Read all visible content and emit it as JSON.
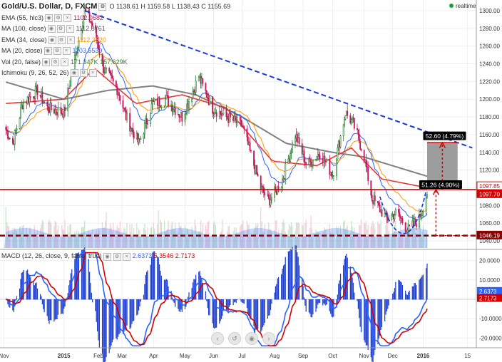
{
  "header": {
    "symbol": "Gold/U.S. Dollar, D, FXCM",
    "ohlc": "O 1138.61  H 1159.58  L 1138.43  C 1155.69",
    "realtime": "realtime"
  },
  "legend": [
    {
      "label": "EMA (55, hlc3)",
      "value": "1102.0682",
      "color": "#c2185b"
    },
    {
      "label": "MA (100, close)",
      "value": "1112.8761",
      "color": "#555555"
    },
    {
      "label": "EMA (34, close)",
      "value": "1112.3620",
      "color": "#ff9800"
    },
    {
      "label": "MA (20, close)",
      "value": "1103.5530",
      "color": "#2962ff"
    },
    {
      "label": "Vol (20, false)",
      "value": "171.347K  157.629K",
      "color": "#2e7d32"
    },
    {
      "label": "Ichimoku (9, 26, 52, 26)",
      "value": "",
      "color": "#888888"
    }
  ],
  "macd_legend": {
    "label": "MACD (12, 26, close, 9, false, true)",
    "v1": "2.6373",
    "v2": "5.3546",
    "v3": "2.7173",
    "c1": "#2962ff",
    "c2": "#d50000",
    "c3": "#d50000"
  },
  "price_badges": [
    {
      "text": "1097.85",
      "price": 1097.85,
      "bg": "#ffffff",
      "fg": "#d50000",
      "border": "#d50000"
    },
    {
      "text": "1097.70",
      "price": 1097.7,
      "bg": "#d50000",
      "fg": "#ffffff",
      "border": "#d50000"
    },
    {
      "text": "1046.19",
      "price": 1046.19,
      "bg": "#8b0000",
      "fg": "#ffffff",
      "border": "#8b0000"
    }
  ],
  "annotations": [
    {
      "text": "51.26 (4.90%)",
      "price": 1102
    },
    {
      "text": "52.60 (4.79%)",
      "price": 1157
    }
  ],
  "nav_buttons": [
    "‹",
    "↺",
    "◉",
    "›"
  ],
  "colors": {
    "up": "#1e7d2a",
    "down": "#c2185b",
    "accent_red": "#d50000",
    "trend_blue": "#1a3ad8",
    "gray_ma": "#808080"
  },
  "chart_data": {
    "type": "line",
    "title": "Gold/U.S. Dollar, D, FXCM",
    "price_axis": {
      "range": [
        1032,
        1312
      ],
      "ticks": [
        "1300.00",
        "1280.00",
        "1260.00",
        "1240.00",
        "1220.00",
        "1200.00",
        "1180.00",
        "1160.00",
        "1140.00",
        "1120.00",
        "1100.00",
        "1080.00",
        "1060.00",
        "1040.00"
      ]
    },
    "time_axis": {
      "labels": [
        "Nov",
        "2015",
        "Feb",
        "Mar",
        "Apr",
        "May",
        "Jun",
        "Jul",
        "Aug",
        "Sep",
        "Oct",
        "Nov",
        "Dec",
        "2016",
        "15"
      ]
    },
    "macd_axis": {
      "range": [
        -25,
        25
      ],
      "ticks": [
        "20.0000",
        "10.0000",
        "0.0000",
        "-10.0000",
        "-20.0000"
      ]
    },
    "series": [
      {
        "name": "Close",
        "values_anchor": [
          [
            "2014-11-01",
            1170
          ],
          [
            "2014-11-10",
            1150
          ],
          [
            "2014-11-20",
            1195
          ],
          [
            "2014-12-05",
            1210
          ],
          [
            "2014-12-15",
            1190
          ],
          [
            "2015-01-01",
            1185
          ],
          [
            "2015-01-10",
            1235
          ],
          [
            "2015-01-22",
            1300
          ],
          [
            "2015-02-01",
            1280
          ],
          [
            "2015-02-10",
            1235
          ],
          [
            "2015-02-25",
            1210
          ],
          [
            "2015-03-05",
            1180
          ],
          [
            "2015-03-18",
            1150
          ],
          [
            "2015-04-01",
            1195
          ],
          [
            "2015-04-15",
            1200
          ],
          [
            "2015-05-01",
            1180
          ],
          [
            "2015-05-18",
            1225
          ],
          [
            "2015-06-01",
            1190
          ],
          [
            "2015-06-15",
            1180
          ],
          [
            "2015-07-01",
            1170
          ],
          [
            "2015-07-20",
            1100
          ],
          [
            "2015-07-28",
            1085
          ],
          [
            "2015-08-10",
            1105
          ],
          [
            "2015-08-24",
            1160
          ],
          [
            "2015-09-05",
            1125
          ],
          [
            "2015-09-18",
            1140
          ],
          [
            "2015-10-01",
            1115
          ],
          [
            "2015-10-14",
            1185
          ],
          [
            "2015-10-22",
            1172
          ],
          [
            "2015-11-01",
            1140
          ],
          [
            "2015-11-10",
            1088
          ],
          [
            "2015-11-25",
            1065
          ],
          [
            "2015-12-05",
            1072
          ],
          [
            "2015-12-17",
            1052
          ],
          [
            "2015-12-28",
            1065
          ],
          [
            "2016-01-05",
            1095
          ]
        ]
      },
      {
        "name": "MA (100, close)",
        "values_anchor": [
          [
            "2014-11-01",
            1220
          ],
          [
            "2015-01-01",
            1200
          ],
          [
            "2015-02-15",
            1210
          ],
          [
            "2015-04-01",
            1215
          ],
          [
            "2015-05-15",
            1205
          ],
          [
            "2015-07-01",
            1180
          ],
          [
            "2015-08-15",
            1150
          ],
          [
            "2015-10-01",
            1140
          ],
          [
            "2015-11-01",
            1135
          ],
          [
            "2016-01-05",
            1113
          ]
        ]
      },
      {
        "name": "EMA (55, hlc3)",
        "values_anchor": [
          [
            "2014-11-01",
            1195
          ],
          [
            "2015-01-01",
            1200
          ],
          [
            "2015-02-01",
            1235
          ],
          [
            "2015-03-15",
            1195
          ],
          [
            "2015-05-01",
            1205
          ],
          [
            "2015-06-15",
            1190
          ],
          [
            "2015-08-01",
            1130
          ],
          [
            "2015-09-15",
            1125
          ],
          [
            "2015-10-20",
            1145
          ],
          [
            "2015-11-20",
            1110
          ],
          [
            "2016-01-05",
            1100
          ]
        ]
      }
    ],
    "trendlines": [
      {
        "name": "downtrend",
        "from": [
          "2015-01-22",
          1300
        ],
        "to": [
          "2016-02-20",
          1145
        ]
      },
      {
        "name": "resistance",
        "price": 1098
      },
      {
        "name": "support",
        "price": 1046
      }
    ]
  }
}
